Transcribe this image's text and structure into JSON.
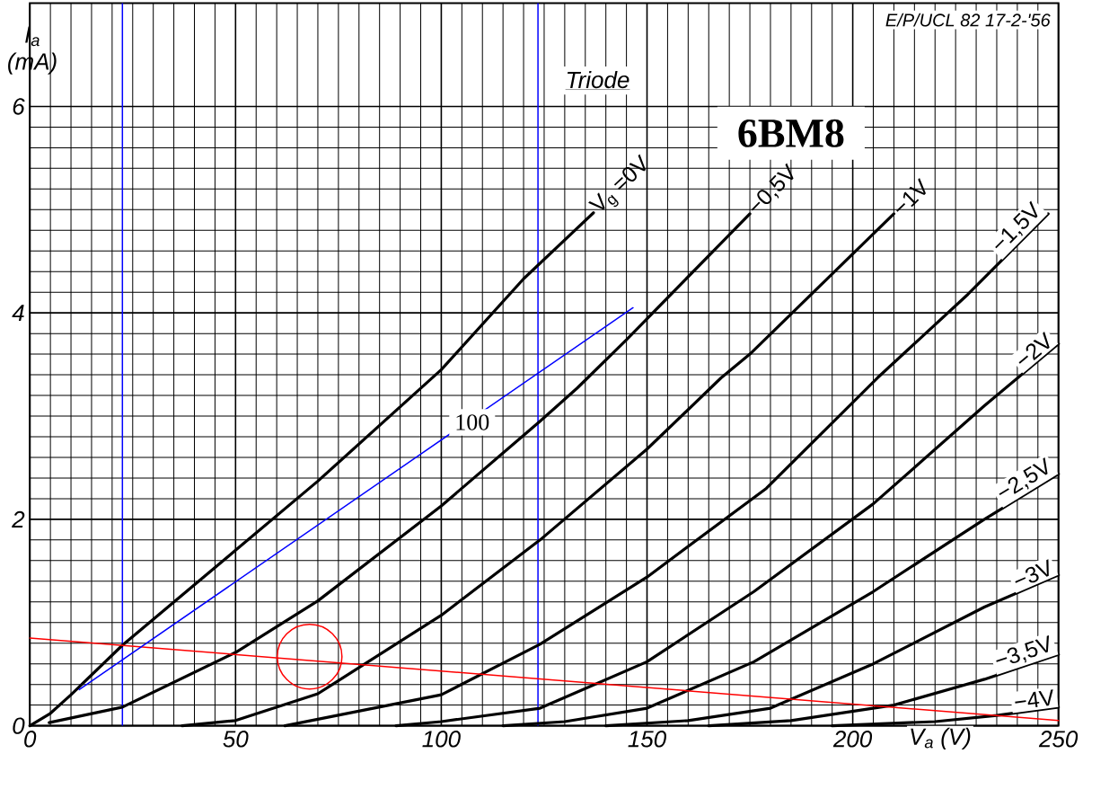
{
  "chart_data": {
    "type": "line",
    "title": "6BM8",
    "subtitle": "Triode",
    "xlabel": "V$_{a}$ (V)",
    "ylabel": "I$_{a}$ (mA)",
    "xlim": [
      0,
      250
    ],
    "ylim": [
      0,
      7
    ],
    "xticks": [
      0,
      50,
      100,
      150,
      200,
      250
    ],
    "yticks": [
      0,
      2,
      4,
      6
    ],
    "grid": true,
    "series": [
      {
        "name": "V$_{g}$ =0V",
        "color": "#000000",
        "x": [
          0,
          5,
          10,
          22.5,
          50,
          70,
          100,
          120,
          137
        ],
        "values": [
          0,
          0.12,
          0.3,
          0.78,
          1.7,
          2.37,
          3.45,
          4.33,
          4.97
        ]
      },
      {
        "name": "−0,5V",
        "color": "#000000",
        "x": [
          4.7,
          22.5,
          50,
          70,
          100,
          124,
          133,
          145,
          175
        ],
        "values": [
          0.03,
          0.18,
          0.71,
          1.21,
          2.13,
          2.95,
          3.27,
          3.74,
          4.96
        ]
      },
      {
        "name": "−1V",
        "color": "#000000",
        "x": [
          37,
          50,
          70,
          100,
          124,
          150,
          168,
          175,
          210
        ],
        "values": [
          0,
          0.05,
          0.31,
          1.07,
          1.8,
          2.68,
          3.37,
          3.6,
          4.96
        ]
      },
      {
        "name": "−1,5V",
        "color": "#000000",
        "x": [
          62,
          100,
          124,
          150,
          179,
          206,
          228,
          247.5
        ],
        "values": [
          0,
          0.3,
          0.79,
          1.44,
          2.3,
          3.37,
          4.18,
          4.96
        ]
      },
      {
        "name": "−2V",
        "color": "#000000",
        "x": [
          89,
          100,
          124,
          150,
          176,
          205,
          232,
          250
        ],
        "values": [
          0,
          0.04,
          0.17,
          0.62,
          1.3,
          2.15,
          3.1,
          3.7
        ]
      },
      {
        "name": "−2,5V",
        "color": "#000000",
        "x": [
          115,
          130,
          150,
          176,
          205,
          232,
          250
        ],
        "values": [
          0,
          0.04,
          0.17,
          0.62,
          1.3,
          2.0,
          2.44
        ]
      },
      {
        "name": "−3V",
        "color": "#000000",
        "x": [
          140,
          160,
          180,
          205,
          232,
          250
        ],
        "values": [
          0,
          0.05,
          0.17,
          0.6,
          1.15,
          1.46
        ]
      },
      {
        "name": "−3,5V",
        "color": "#000000",
        "x": [
          165,
          185,
          210,
          232,
          250
        ],
        "values": [
          0,
          0.05,
          0.2,
          0.45,
          0.69
        ]
      },
      {
        "name": "−4V",
        "color": "#000000",
        "x": [
          195,
          220,
          235,
          250
        ],
        "values": [
          0,
          0.04,
          0.1,
          0.18
        ]
      },
      {
        "type": "line",
        "color": "#ff0000",
        "x": [
          0,
          250
        ],
        "values": [
          0.85,
          0.05
        ]
      },
      {
        "type": "line",
        "color": "#0000ff",
        "x": [
          12,
          146.6
        ],
        "values": [
          0.35,
          4.05
        ]
      },
      {
        "type": "scatter",
        "marker": "circle",
        "color": "#ff0000",
        "x": [
          68
        ],
        "values": [
          0.67
        ]
      }
    ],
    "ref_lines": [
      {
        "axis": "x",
        "value": 22.5,
        "color": "#0000ff"
      },
      {
        "axis": "x",
        "value": 123.5,
        "color": "#0000ff"
      }
    ],
    "annotations": [
      {
        "text": "100",
        "x": 107.5,
        "y": 2.94
      },
      "E/P/UCL 82 17-2-'56"
    ]
  }
}
